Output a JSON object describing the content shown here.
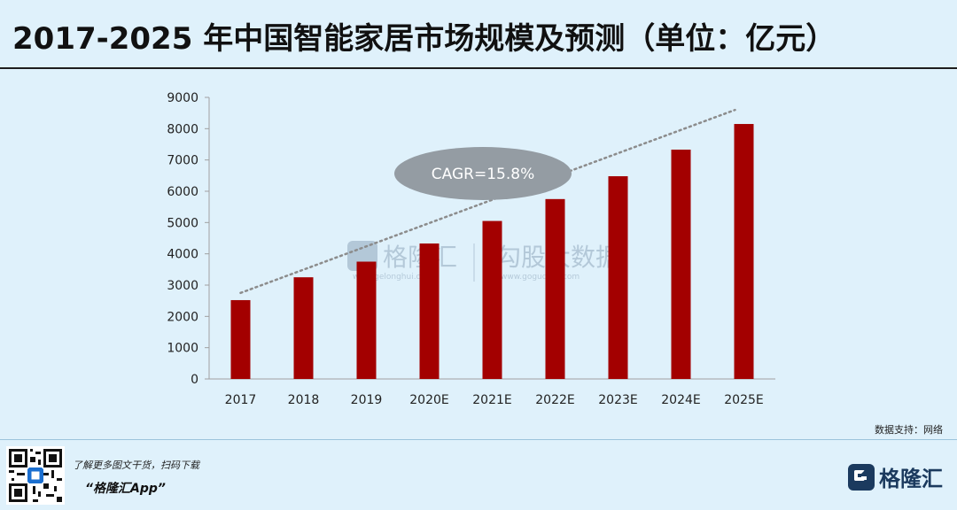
{
  "title": "2017-2025 年中国智能家居市场规模及预测（单位：亿元）",
  "source": "数据支持：网络",
  "footer": {
    "promo": "了解更多图文干货，扫码下载",
    "app": "“格隆汇App”",
    "logo": "格隆汇"
  },
  "watermark": {
    "brand": "格隆汇",
    "brand_url": "www.gelonghui.com",
    "data": "勾股大数据",
    "data_url": "www.gogudata.com"
  },
  "colors": {
    "bar": "#a30000",
    "trend": "#8c8c8c",
    "annotation_fill": "#949ca3"
  },
  "chart_data": {
    "type": "bar",
    "categories": [
      "2017",
      "2018",
      "2019",
      "2020E",
      "2021E",
      "2022E",
      "2023E",
      "2024E",
      "2025E"
    ],
    "values": [
      2520,
      3250,
      3750,
      4330,
      5050,
      5750,
      6480,
      7330,
      8150
    ],
    "ylim": [
      0,
      9000
    ],
    "yticks": [
      0,
      1000,
      2000,
      3000,
      4000,
      5000,
      6000,
      7000,
      8000,
      9000
    ],
    "trendline": {
      "style": "dotted",
      "x_start": "2017",
      "y_start": 2750,
      "x_end": "2025E",
      "y_end": 8600
    },
    "annotation": "CAGR=15.8%",
    "grid": false,
    "legend": "none"
  }
}
